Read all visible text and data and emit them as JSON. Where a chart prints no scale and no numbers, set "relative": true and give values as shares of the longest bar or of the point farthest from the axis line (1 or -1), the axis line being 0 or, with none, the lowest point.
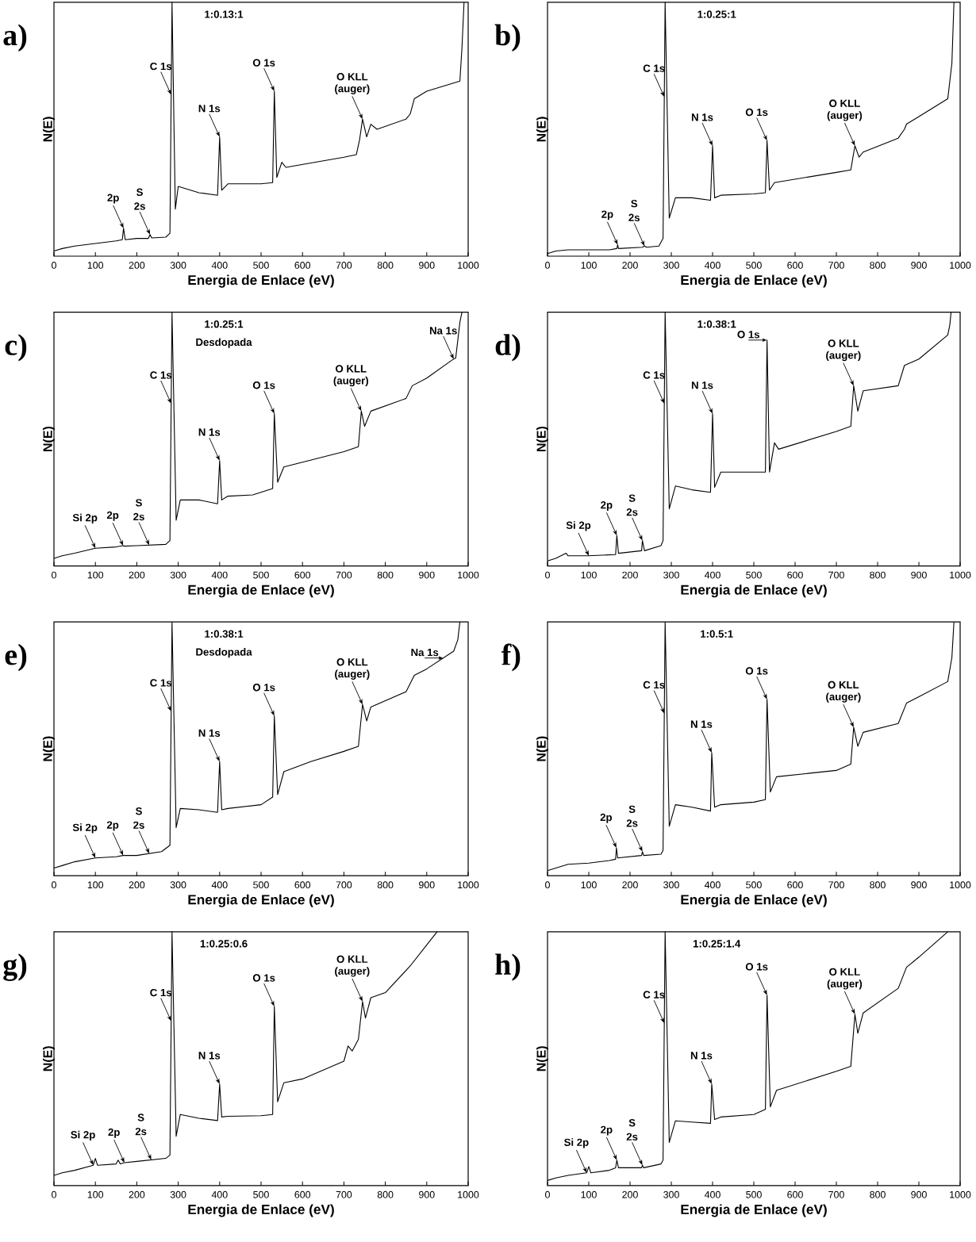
{
  "chart_data": [
    {
      "type": "line",
      "title": "a)",
      "xlabel": "Energia de Enlace (eV)",
      "ylabel": "N(E)",
      "relative": true,
      "color": "#000000",
      "xlim": [
        0,
        1000
      ],
      "xticks": [
        0,
        100,
        200,
        300,
        400,
        500,
        600,
        700,
        800,
        900,
        1000
      ],
      "x": [
        0,
        20,
        50,
        100,
        150,
        165,
        168,
        172,
        200,
        228,
        232,
        236,
        270,
        280,
        285,
        293,
        300,
        350,
        395,
        400,
        405,
        420,
        500,
        528,
        532,
        538,
        550,
        560,
        700,
        730,
        738,
        745,
        755,
        765,
        780,
        850,
        860,
        870,
        900,
        980,
        985,
        990
      ],
      "values": [
        0.02,
        0.03,
        0.04,
        0.05,
        0.06,
        0.065,
        0.11,
        0.065,
        0.07,
        0.07,
        0.085,
        0.072,
        0.075,
        0.09,
        1,
        0.185,
        0.275,
        0.25,
        0.24,
        0.47,
        0.26,
        0.285,
        0.285,
        0.29,
        0.65,
        0.31,
        0.37,
        0.35,
        0.39,
        0.4,
        0.46,
        0.54,
        0.47,
        0.52,
        0.5,
        0.54,
        0.56,
        0.62,
        0.65,
        0.69,
        0.82,
        1
      ],
      "annotations": [
        "1:0.13:1",
        {
          "text": "C 1s",
          "x": 283,
          "y": 0.636
        },
        {
          "text": "N 1s",
          "x": 400,
          "y": 0.47
        },
        {
          "text": "O 1s",
          "x": 532,
          "y": 0.65
        },
        {
          "text": "2p",
          "x": 168,
          "y": 0.11
        },
        {
          "text": "2s",
          "x": 232,
          "y": 0.085
        },
        "S",
        {
          "text": "(auger)",
          "x": 745,
          "y": 0.54
        },
        "O  KLL"
      ]
    },
    {
      "type": "line",
      "title": "b)",
      "xlabel": "Energia de Enlace (eV)",
      "ylabel": "N(E)",
      "relative": true,
      "color": "#000000",
      "xlim": [
        0,
        1000
      ],
      "xticks": [
        0,
        100,
        200,
        300,
        400,
        500,
        600,
        700,
        800,
        900,
        1000
      ],
      "x": [
        0,
        20,
        50,
        100,
        150,
        168,
        170,
        172,
        230,
        235,
        240,
        270,
        280,
        285,
        295,
        310,
        350,
        395,
        400,
        405,
        420,
        500,
        528,
        532,
        538,
        550,
        700,
        735,
        745,
        755,
        765,
        850,
        865,
        870,
        900,
        970,
        980,
        985
      ],
      "values": [
        0.01,
        0.02,
        0.025,
        0.025,
        0.025,
        0.03,
        0.045,
        0.03,
        0.035,
        0.04,
        0.035,
        0.04,
        0.07,
        1,
        0.15,
        0.23,
        0.23,
        0.22,
        0.435,
        0.23,
        0.24,
        0.245,
        0.25,
        0.455,
        0.26,
        0.29,
        0.33,
        0.34,
        0.435,
        0.39,
        0.41,
        0.465,
        0.5,
        0.52,
        0.55,
        0.62,
        0.76,
        1
      ],
      "annotations": [
        "1:0.25:1",
        {
          "text": "C 1s",
          "x": 283,
          "y": 0.628
        },
        {
          "text": "N 1s",
          "x": 400,
          "y": 0.435
        },
        {
          "text": "O 1s",
          "x": 532,
          "y": 0.455
        },
        {
          "text": "2p",
          "x": 170,
          "y": 0.045
        },
        {
          "text": "2s",
          "x": 235,
          "y": 0.04
        },
        "S",
        {
          "text": "(auger)",
          "x": 745,
          "y": 0.435
        },
        "O  KLL"
      ]
    },
    {
      "type": "line",
      "title": "c)",
      "xlabel": "Energia de Enlace (eV)",
      "ylabel": "N(E)",
      "relative": true,
      "color": "#000000",
      "xlim": [
        0,
        1000
      ],
      "xticks": [
        0,
        100,
        200,
        300,
        400,
        500,
        600,
        700,
        800,
        900,
        1000
      ],
      "x": [
        0,
        20,
        50,
        100,
        150,
        167,
        170,
        200,
        270,
        280,
        285,
        295,
        305,
        350,
        395,
        400,
        405,
        420,
        480,
        528,
        532,
        540,
        555,
        700,
        735,
        742,
        750,
        765,
        850,
        865,
        900,
        960,
        970,
        980,
        985
      ],
      "values": [
        0.03,
        0.04,
        0.05,
        0.07,
        0.075,
        0.08,
        0.078,
        0.08,
        0.085,
        0.1,
        1,
        0.18,
        0.26,
        0.26,
        0.245,
        0.415,
        0.26,
        0.275,
        0.28,
        0.305,
        0.6,
        0.33,
        0.39,
        0.45,
        0.47,
        0.61,
        0.55,
        0.61,
        0.66,
        0.71,
        0.74,
        0.81,
        0.82,
        0.96,
        1
      ],
      "annotations": [
        "1:0.25:1",
        "Desdopada",
        {
          "text": "C 1s",
          "x": 283,
          "y": 0.64
        },
        {
          "text": "N 1s",
          "x": 400,
          "y": 0.415
        },
        {
          "text": "O 1s",
          "x": 532,
          "y": 0.6
        },
        {
          "text": "Si 2p",
          "x": 100,
          "y": 0.07
        },
        {
          "text": "2p",
          "x": 167,
          "y": 0.08
        },
        {
          "text": "2s",
          "x": 230,
          "y": 0.082
        },
        "S",
        {
          "text": "Na 1s",
          "x": 965,
          "y": 0.815
        },
        {
          "text": "(auger)",
          "x": 742,
          "y": 0.61
        },
        "O  KLL"
      ]
    },
    {
      "type": "line",
      "title": "d)",
      "xlabel": "Energia de Enlace (eV)",
      "ylabel": "N(E)",
      "relative": true,
      "color": "#000000",
      "xlim": [
        0,
        1000
      ],
      "xticks": [
        0,
        100,
        200,
        300,
        400,
        500,
        600,
        700,
        800,
        900,
        1000
      ],
      "x": [
        0,
        20,
        45,
        50,
        100,
        165,
        168,
        172,
        228,
        230,
        235,
        275,
        280,
        285,
        295,
        310,
        350,
        395,
        400,
        405,
        420,
        500,
        528,
        532,
        538,
        550,
        560,
        700,
        735,
        742,
        752,
        765,
        850,
        865,
        900,
        970,
        975,
        978
      ],
      "values": [
        0.02,
        0.03,
        0.05,
        0.04,
        0.04,
        0.045,
        0.12,
        0.05,
        0.06,
        0.1,
        0.06,
        0.08,
        0.1,
        1,
        0.225,
        0.315,
        0.3,
        0.29,
        0.6,
        0.31,
        0.37,
        0.37,
        0.37,
        0.89,
        0.37,
        0.485,
        0.46,
        0.53,
        0.55,
        0.71,
        0.61,
        0.69,
        0.71,
        0.79,
        0.815,
        0.91,
        0.95,
        1
      ],
      "annotations": [
        "1:0.38:1",
        {
          "text": "C 1s",
          "x": 283,
          "y": 0.64
        },
        {
          "text": "N 1s",
          "x": 400,
          "y": 0.6
        },
        {
          "text": "O 1s",
          "x": 532,
          "y": 0.89
        },
        {
          "text": "Si 2p",
          "x": 100,
          "y": 0.04
        },
        {
          "text": "2p",
          "x": 168,
          "y": 0.12
        },
        {
          "text": "2s",
          "x": 230,
          "y": 0.1
        },
        "S",
        {
          "text": "(auger)",
          "x": 742,
          "y": 0.71
        },
        "O  KLL"
      ]
    },
    {
      "type": "line",
      "title": "e)",
      "xlabel": "Energia de Enlace (eV)",
      "ylabel": "N(E)",
      "relative": true,
      "color": "#000000",
      "xlim": [
        0,
        1000
      ],
      "xticks": [
        0,
        100,
        200,
        300,
        400,
        500,
        600,
        700,
        800,
        900,
        1000
      ],
      "x": [
        0,
        20,
        50,
        100,
        150,
        167,
        200,
        260,
        280,
        285,
        295,
        305,
        350,
        395,
        400,
        405,
        420,
        500,
        528,
        532,
        540,
        555,
        620,
        700,
        735,
        745,
        755,
        765,
        850,
        870,
        900,
        965,
        975,
        980
      ],
      "values": [
        0.03,
        0.04,
        0.055,
        0.07,
        0.075,
        0.08,
        0.08,
        0.095,
        0.12,
        1,
        0.19,
        0.265,
        0.26,
        0.25,
        0.45,
        0.26,
        0.265,
        0.28,
        0.31,
        0.63,
        0.32,
        0.41,
        0.45,
        0.49,
        0.51,
        0.675,
        0.61,
        0.665,
        0.725,
        0.79,
        0.815,
        0.885,
        0.93,
        1
      ],
      "annotations": [
        "1:0.38:1",
        "Desdopada",
        {
          "text": "C 1s",
          "x": 283,
          "y": 0.648
        },
        {
          "text": "N 1s",
          "x": 400,
          "y": 0.45
        },
        {
          "text": "O 1s",
          "x": 532,
          "y": 0.63
        },
        {
          "text": "Si 2p",
          "x": 100,
          "y": 0.07
        },
        {
          "text": "2p",
          "x": 167,
          "y": 0.08
        },
        {
          "text": "2s",
          "x": 230,
          "y": 0.0875
        },
        "S",
        {
          "text": "Na 1s",
          "x": 940,
          "y": 0.858
        },
        {
          "text": "(auger)",
          "x": 745,
          "y": 0.675
        },
        "O  KLL"
      ]
    },
    {
      "type": "line",
      "title": "f)",
      "xlabel": "Energia de Enlace (eV)",
      "ylabel": "N(E)",
      "relative": true,
      "color": "#000000",
      "xlim": [
        0,
        1000
      ],
      "xticks": [
        0,
        100,
        200,
        300,
        400,
        500,
        600,
        700,
        800,
        900,
        1000
      ],
      "x": [
        0,
        20,
        50,
        100,
        150,
        165,
        167,
        170,
        228,
        230,
        233,
        275,
        280,
        285,
        295,
        310,
        350,
        395,
        398,
        405,
        420,
        500,
        528,
        532,
        540,
        555,
        700,
        735,
        742,
        752,
        765,
        850,
        870,
        900,
        970,
        980,
        985
      ],
      "values": [
        0.02,
        0.03,
        0.045,
        0.05,
        0.06,
        0.065,
        0.11,
        0.07,
        0.08,
        0.095,
        0.08,
        0.085,
        0.1,
        1,
        0.195,
        0.28,
        0.27,
        0.255,
        0.485,
        0.27,
        0.28,
        0.29,
        0.3,
        0.695,
        0.33,
        0.39,
        0.415,
        0.44,
        0.585,
        0.51,
        0.565,
        0.6,
        0.68,
        0.705,
        0.765,
        0.86,
        1
      ],
      "annotations": [
        "1:0.5:1",
        {
          "text": "C 1s",
          "x": 283,
          "y": 0.64
        },
        {
          "text": "N 1s",
          "x": 398,
          "y": 0.485
        },
        {
          "text": "O 1s",
          "x": 532,
          "y": 0.695
        },
        {
          "text": "2p",
          "x": 167,
          "y": 0.11
        },
        {
          "text": "2s",
          "x": 230,
          "y": 0.095
        },
        "S",
        {
          "text": "(auger)",
          "x": 742,
          "y": 0.585
        },
        "O  KLL"
      ]
    },
    {
      "type": "line",
      "title": "g)",
      "xlabel": "Energia de Enlace (eV)",
      "ylabel": "N(E)",
      "relative": true,
      "color": "#000000",
      "xlim": [
        0,
        1000
      ],
      "xticks": [
        0,
        100,
        200,
        300,
        400,
        500,
        600,
        700,
        800,
        900,
        1000
      ],
      "x": [
        0,
        20,
        50,
        95,
        100,
        105,
        150,
        155,
        160,
        170,
        200,
        270,
        280,
        285,
        295,
        305,
        350,
        395,
        400,
        405,
        420,
        500,
        528,
        532,
        540,
        555,
        600,
        700,
        710,
        720,
        735,
        745,
        752,
        765,
        800,
        860,
        900,
        925
      ],
      "values": [
        0.04,
        0.05,
        0.06,
        0.08,
        0.107,
        0.08,
        0.085,
        0.1,
        0.085,
        0.09,
        0.095,
        0.107,
        0.12,
        1,
        0.194,
        0.28,
        0.265,
        0.256,
        0.4,
        0.27,
        0.273,
        0.275,
        0.28,
        0.706,
        0.33,
        0.405,
        0.42,
        0.49,
        0.55,
        0.53,
        0.576,
        0.725,
        0.66,
        0.74,
        0.76,
        0.865,
        0.948,
        1
      ],
      "annotations": [
        "1:0.25:0.6",
        {
          "text": "C 1s",
          "x": 283,
          "y": 0.648
        },
        {
          "text": "N 1s",
          "x": 400,
          "y": 0.4
        },
        {
          "text": "O 1s",
          "x": 532,
          "y": 0.706
        },
        {
          "text": "Si  2p",
          "x": 95,
          "y": 0.08
        },
        {
          "text": "2p",
          "x": 170,
          "y": 0.09
        },
        {
          "text": "2s",
          "x": 235,
          "y": 0.101
        },
        "S",
        {
          "text": "(auger)",
          "x": 745,
          "y": 0.725
        },
        "O  KLL"
      ]
    },
    {
      "type": "line",
      "title": "h)",
      "xlabel": "Energia de Enlace (eV)",
      "ylabel": "N(E)",
      "relative": true,
      "color": "#000000",
      "xlim": [
        0,
        1000
      ],
      "xticks": [
        0,
        100,
        200,
        300,
        400,
        500,
        600,
        700,
        800,
        900,
        1000
      ],
      "x": [
        0,
        20,
        50,
        95,
        100,
        105,
        150,
        165,
        168,
        172,
        228,
        230,
        233,
        275,
        280,
        285,
        295,
        310,
        350,
        395,
        398,
        405,
        420,
        500,
        528,
        532,
        540,
        555,
        700,
        735,
        745,
        752,
        765,
        850,
        870,
        900,
        970
      ],
      "values": [
        0.02,
        0.03,
        0.04,
        0.05,
        0.075,
        0.05,
        0.06,
        0.07,
        0.1,
        0.07,
        0.07,
        0.08,
        0.07,
        0.085,
        0.1,
        1,
        0.17,
        0.255,
        0.25,
        0.245,
        0.4,
        0.26,
        0.27,
        0.28,
        0.3,
        0.75,
        0.31,
        0.375,
        0.45,
        0.47,
        0.675,
        0.6,
        0.68,
        0.777,
        0.86,
        0.9,
        1
      ],
      "annotations": [
        "1:0.25:1.4",
        {
          "text": "C 1s",
          "x": 283,
          "y": 0.64
        },
        {
          "text": "N 1s",
          "x": 398,
          "y": 0.4
        },
        {
          "text": "O 1s",
          "x": 532,
          "y": 0.75
        },
        {
          "text": "Si 2p",
          "x": 95,
          "y": 0.05
        },
        {
          "text": "2p",
          "x": 168,
          "y": 0.1
        },
        {
          "text": "2s",
          "x": 230,
          "y": 0.08
        },
        "S",
        {
          "text": "(auger)",
          "x": 745,
          "y": 0.675
        },
        "O  KLL"
      ]
    }
  ]
}
